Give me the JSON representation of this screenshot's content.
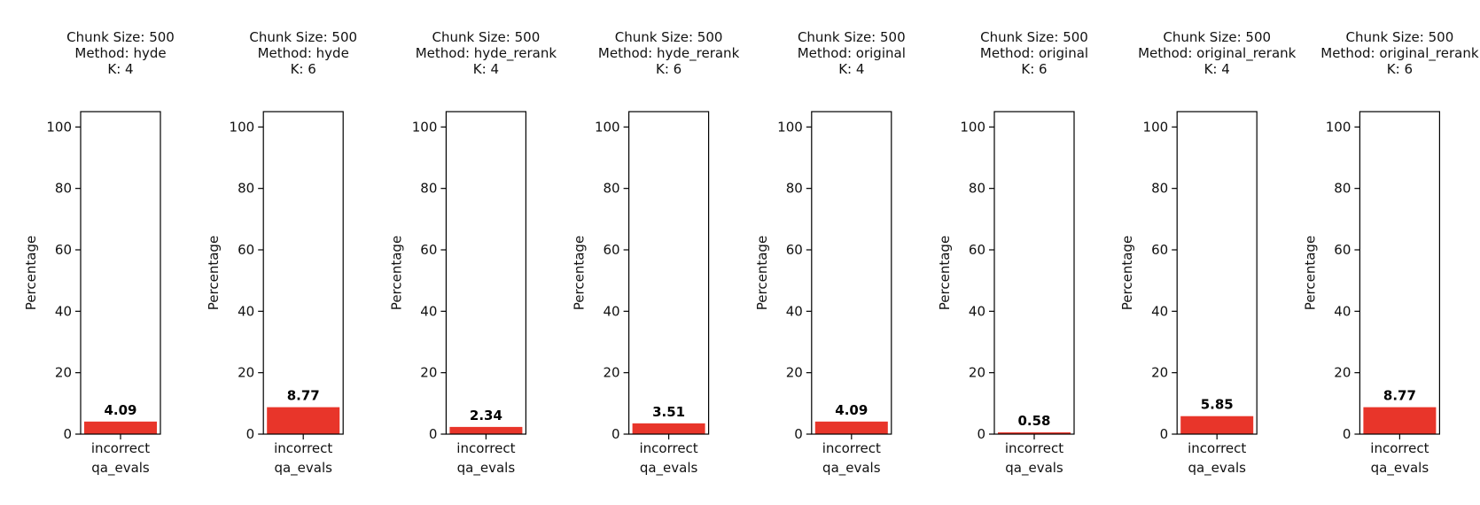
{
  "chart_data": [
    {
      "type": "bar",
      "title": [
        "Chunk Size: 500",
        "Method: hyde",
        "K: 4"
      ],
      "ylabel": "Percentage",
      "categories": [
        "incorrect"
      ],
      "xlabel": "qa_evals",
      "values": [
        4.09
      ],
      "data_labels": [
        "4.09"
      ],
      "ylim": [
        0,
        105
      ],
      "yticks": [
        0,
        20,
        40,
        60,
        80,
        100
      ],
      "ytick_labels": [
        "0",
        "20",
        "40",
        "60",
        "80",
        "100"
      ],
      "bar_color": "#e8352a"
    },
    {
      "type": "bar",
      "title": [
        "Chunk Size: 500",
        "Method: hyde",
        "K: 6"
      ],
      "ylabel": "Percentage",
      "categories": [
        "incorrect"
      ],
      "xlabel": "qa_evals",
      "values": [
        8.77
      ],
      "data_labels": [
        "8.77"
      ],
      "ylim": [
        0,
        105
      ],
      "yticks": [
        0,
        20,
        40,
        60,
        80,
        100
      ],
      "ytick_labels": [
        "0",
        "20",
        "40",
        "60",
        "80",
        "100"
      ],
      "bar_color": "#e8352a"
    },
    {
      "type": "bar",
      "title": [
        "Chunk Size: 500",
        "Method: hyde_rerank",
        "K: 4"
      ],
      "ylabel": "Percentage",
      "categories": [
        "incorrect"
      ],
      "xlabel": "qa_evals",
      "values": [
        2.34
      ],
      "data_labels": [
        "2.34"
      ],
      "ylim": [
        0,
        105
      ],
      "yticks": [
        0,
        20,
        40,
        60,
        80,
        100
      ],
      "ytick_labels": [
        "0",
        "20",
        "40",
        "60",
        "80",
        "100"
      ],
      "bar_color": "#e8352a"
    },
    {
      "type": "bar",
      "title": [
        "Chunk Size: 500",
        "Method: hyde_rerank",
        "K: 6"
      ],
      "ylabel": "Percentage",
      "categories": [
        "incorrect"
      ],
      "xlabel": "qa_evals",
      "values": [
        3.51
      ],
      "data_labels": [
        "3.51"
      ],
      "ylim": [
        0,
        105
      ],
      "yticks": [
        0,
        20,
        40,
        60,
        80,
        100
      ],
      "ytick_labels": [
        "0",
        "20",
        "40",
        "60",
        "80",
        "100"
      ],
      "bar_color": "#e8352a"
    },
    {
      "type": "bar",
      "title": [
        "Chunk Size: 500",
        "Method: original",
        "K: 4"
      ],
      "ylabel": "Percentage",
      "categories": [
        "incorrect"
      ],
      "xlabel": "qa_evals",
      "values": [
        4.09
      ],
      "data_labels": [
        "4.09"
      ],
      "ylim": [
        0,
        105
      ],
      "yticks": [
        0,
        20,
        40,
        60,
        80,
        100
      ],
      "ytick_labels": [
        "0",
        "20",
        "40",
        "60",
        "80",
        "100"
      ],
      "bar_color": "#e8352a"
    },
    {
      "type": "bar",
      "title": [
        "Chunk Size: 500",
        "Method: original",
        "K: 6"
      ],
      "ylabel": "Percentage",
      "categories": [
        "incorrect"
      ],
      "xlabel": "qa_evals",
      "values": [
        0.58
      ],
      "data_labels": [
        "0.58"
      ],
      "ylim": [
        0,
        105
      ],
      "yticks": [
        0,
        20,
        40,
        60,
        80,
        100
      ],
      "ytick_labels": [
        "0",
        "20",
        "40",
        "60",
        "80",
        "100"
      ],
      "bar_color": "#e8352a"
    },
    {
      "type": "bar",
      "title": [
        "Chunk Size: 500",
        "Method: original_rerank",
        "K: 4"
      ],
      "ylabel": "Percentage",
      "categories": [
        "incorrect"
      ],
      "xlabel": "qa_evals",
      "values": [
        5.85
      ],
      "data_labels": [
        "5.85"
      ],
      "ylim": [
        0,
        105
      ],
      "yticks": [
        0,
        20,
        40,
        60,
        80,
        100
      ],
      "ytick_labels": [
        "0",
        "20",
        "40",
        "60",
        "80",
        "100"
      ],
      "bar_color": "#e8352a"
    },
    {
      "type": "bar",
      "title": [
        "Chunk Size: 500",
        "Method: original_rerank",
        "K: 6"
      ],
      "ylabel": "Percentage",
      "categories": [
        "incorrect"
      ],
      "xlabel": "qa_evals",
      "values": [
        8.77
      ],
      "data_labels": [
        "8.77"
      ],
      "ylim": [
        0,
        105
      ],
      "yticks": [
        0,
        20,
        40,
        60,
        80,
        100
      ],
      "ytick_labels": [
        "0",
        "20",
        "40",
        "60",
        "80",
        "100"
      ],
      "bar_color": "#e8352a"
    }
  ]
}
